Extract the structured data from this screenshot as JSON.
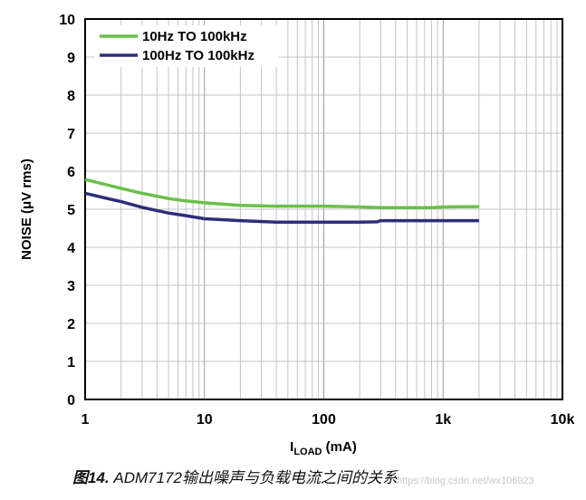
{
  "chart_data": {
    "type": "line",
    "xscale": "log",
    "xlim": [
      1,
      10000
    ],
    "ylim": [
      0,
      10
    ],
    "xticks": [
      1,
      10,
      100,
      1000,
      10000
    ],
    "xtick_labels": [
      "1",
      "10",
      "100",
      "1k",
      "10k"
    ],
    "yticks": [
      0,
      1,
      2,
      3,
      4,
      5,
      6,
      7,
      8,
      9,
      10
    ],
    "ytick_labels": [
      "0",
      "1",
      "2",
      "3",
      "4",
      "5",
      "6",
      "7",
      "8",
      "9",
      "10"
    ],
    "grid": true,
    "legend_position": "top-left",
    "ylabel": "NOISE (μV rms)",
    "xlabel_main": "I",
    "xlabel_sub": "LOAD",
    "xlabel_unit": " (mA)",
    "series": [
      {
        "name": "10Hz TO 100kHz",
        "color": "#6abf4b",
        "x": [
          1,
          2,
          3,
          5,
          7,
          10,
          20,
          40,
          100,
          200,
          300,
          500,
          800,
          1000,
          2000
        ],
        "y": [
          5.78,
          5.55,
          5.42,
          5.28,
          5.22,
          5.17,
          5.1,
          5.08,
          5.08,
          5.06,
          5.04,
          5.04,
          5.04,
          5.06,
          5.07
        ]
      },
      {
        "name": "100Hz TO 100kHz",
        "color": "#2b2f7a",
        "x": [
          1,
          2,
          3,
          5,
          7,
          10,
          20,
          40,
          100,
          200,
          280,
          300,
          500,
          1000,
          2000
        ],
        "y": [
          5.42,
          5.2,
          5.05,
          4.9,
          4.83,
          4.75,
          4.7,
          4.66,
          4.66,
          4.66,
          4.67,
          4.7,
          4.7,
          4.7,
          4.7
        ]
      }
    ]
  },
  "caption": {
    "figure_label": "图14.",
    "text": " ADM7172输出噪声与负载电流之间的关系"
  },
  "watermark": "https://blog.csdn.net/wx106923"
}
